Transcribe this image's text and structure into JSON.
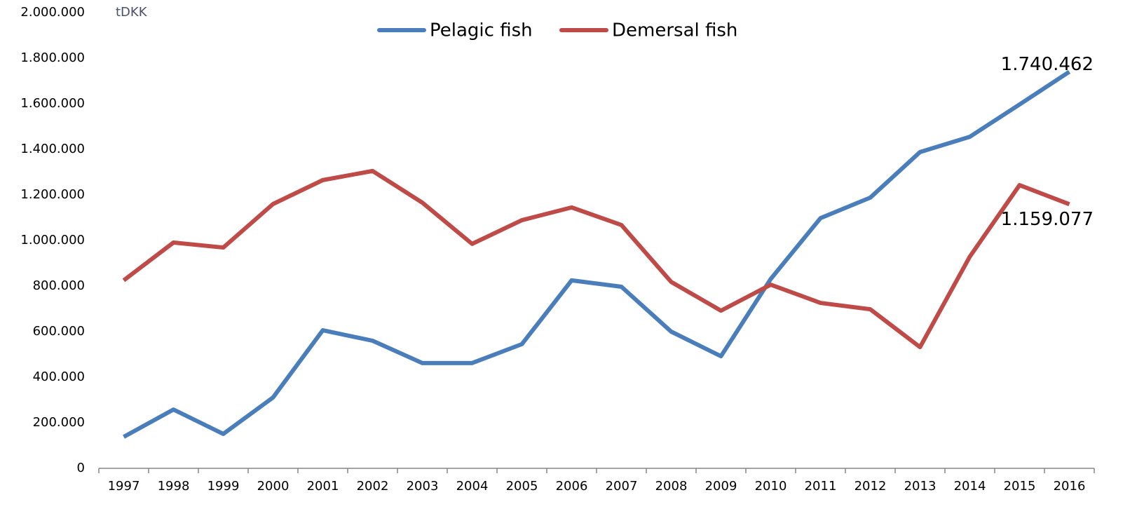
{
  "chart_data": {
    "type": "line",
    "y_label": "tDKK",
    "categories": [
      "1997",
      "1998",
      "1999",
      "2000",
      "2001",
      "2002",
      "2003",
      "2004",
      "2005",
      "2006",
      "2007",
      "2008",
      "2009",
      "2010",
      "2011",
      "2012",
      "2013",
      "2014",
      "2015",
      "2016"
    ],
    "series": [
      {
        "name": "Pelagic fish",
        "color": "#4a7ebb",
        "values": [
          138000,
          258000,
          151000,
          311000,
          606000,
          560000,
          462000,
          462000,
          545000,
          825000,
          797000,
          600000,
          492000,
          831000,
          1098000,
          1188000,
          1388000,
          1455000,
          1597000,
          1740462
        ],
        "value_labels": [
          null,
          null,
          null,
          null,
          null,
          null,
          null,
          null,
          null,
          null,
          null,
          null,
          null,
          null,
          null,
          null,
          null,
          null,
          null,
          "1.740.462"
        ]
      },
      {
        "name": "Demersal fish",
        "color": "#be4b48",
        "values": [
          825000,
          991000,
          969000,
          1160000,
          1265000,
          1305000,
          1166000,
          985000,
          1089000,
          1145000,
          1068000,
          818000,
          692000,
          806000,
          726000,
          698000,
          532000,
          929000,
          1243000,
          1159077
        ],
        "value_labels": [
          null,
          null,
          null,
          null,
          null,
          null,
          null,
          null,
          null,
          null,
          null,
          null,
          null,
          null,
          null,
          null,
          null,
          null,
          null,
          "1.159.077"
        ]
      }
    ],
    "ylim": [
      0,
      2000000
    ],
    "yticks": [
      0,
      {
        "value": 200000,
        "label": "200.000"
      },
      {
        "value": 400000,
        "label": "400.000"
      },
      {
        "value": 600000,
        "label": "600.000"
      },
      {
        "value": 800000,
        "label": "800.000"
      },
      {
        "value": 1000000,
        "label": "1.000.000"
      },
      {
        "value": 1200000,
        "label": "1.200.000"
      },
      {
        "value": 1400000,
        "label": "1.400.000"
      },
      {
        "value": 1600000,
        "label": "1.600.000"
      },
      {
        "value": 1800000,
        "label": "1.800.000"
      },
      {
        "value": 2000000,
        "label": "2.000.000"
      }
    ],
    "grid": false,
    "legend": "top"
  }
}
